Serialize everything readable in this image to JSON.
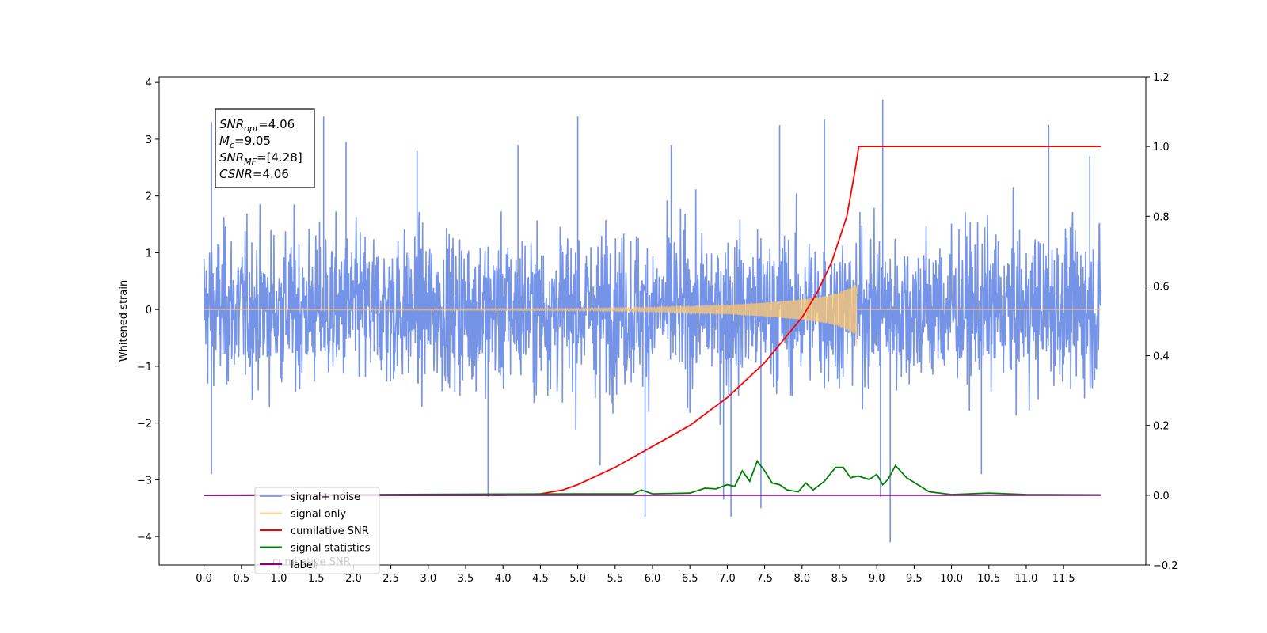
{
  "chart_data": {
    "type": "line",
    "ylabel_left": "Whitened strain",
    "xlim": [
      -0.6,
      12.6
    ],
    "ylim_left": [
      -4.5,
      4.1
    ],
    "ylim_right": [
      -0.2,
      1.2
    ],
    "x_ticks": [
      0.0,
      0.5,
      1.0,
      1.5,
      2.0,
      2.5,
      3.0,
      3.5,
      4.0,
      4.5,
      5.0,
      5.5,
      6.0,
      6.5,
      7.0,
      7.5,
      8.0,
      8.5,
      9.0,
      9.5,
      10.0,
      10.5,
      11.0,
      11.5
    ],
    "x_tick_labels": [
      "0.0",
      "0.5",
      "1.0",
      "1.5",
      "2.0",
      "2.5",
      "3.0",
      "3.5",
      "4.0",
      "4.5",
      "5.0",
      "5.5",
      "6.0",
      "6.5",
      "7.0",
      "7.5",
      "8.0",
      "8.5",
      "9.0",
      "9.5",
      "10.0",
      "10.5",
      "11.0",
      "11.5"
    ],
    "y_left_ticks": [
      -4,
      -3,
      -2,
      -1,
      0,
      1,
      2,
      3,
      4
    ],
    "y_left_tick_labels": [
      "−4",
      "−3",
      "−2",
      "−1",
      "0",
      "1",
      "2",
      "3",
      "4"
    ],
    "y_right_ticks": [
      -0.2,
      0.0,
      0.2,
      0.4,
      0.6,
      0.8,
      1.0,
      1.2
    ],
    "y_right_tick_labels": [
      "−0.2",
      "0.0",
      "0.2",
      "0.4",
      "0.6",
      "0.8",
      "1.0",
      "1.2"
    ],
    "annotation": {
      "lines": [
        {
          "sym": "SNR",
          "sub": "opt",
          "rest": "=4.06"
        },
        {
          "sym": "M",
          "sub": "c",
          "rest": "=9.05"
        },
        {
          "sym": "SNR",
          "sub": "MF",
          "rest": "=[4.28]"
        },
        {
          "sym": "CSNR",
          "sub": "",
          "rest": "=4.06"
        }
      ]
    },
    "legend": {
      "placement": "lower-left",
      "entries": [
        {
          "label": "signal+ noise",
          "color": "#6f8ee6"
        },
        {
          "label": "signal only",
          "color": "#ffc870"
        },
        {
          "label": "cumilative SNR",
          "color": "#ff0000"
        },
        {
          "label": "signal statistics",
          "color": "#008000"
        },
        {
          "label": "label",
          "color": "#800080"
        }
      ],
      "occluded_text": "cumilative SNR"
    },
    "series": [
      {
        "name": "signal+ noise",
        "axis": "left",
        "color": "#6f8ee6",
        "x_range": [
          0.0,
          12.0
        ],
        "band_typical": [
          -1.6,
          1.6
        ],
        "peaks": [
          {
            "x": 0.1,
            "y": 3.3
          },
          {
            "x": 1.6,
            "y": 3.4
          },
          {
            "x": 5.0,
            "y": 3.4
          },
          {
            "x": 7.7,
            "y": 3.25
          },
          {
            "x": 8.3,
            "y": 3.35
          },
          {
            "x": 9.08,
            "y": 3.7
          },
          {
            "x": 11.3,
            "y": 3.25
          },
          {
            "x": 11.85,
            "y": 2.7
          },
          {
            "x": 1.9,
            "y": 2.95
          },
          {
            "x": 2.85,
            "y": 2.8
          },
          {
            "x": 4.2,
            "y": 2.9
          },
          {
            "x": 6.25,
            "y": 2.9
          }
        ],
        "troughs": [
          {
            "x": 0.1,
            "y": -2.9
          },
          {
            "x": 3.8,
            "y": -3.3
          },
          {
            "x": 5.9,
            "y": -3.65
          },
          {
            "x": 7.05,
            "y": -3.65
          },
          {
            "x": 7.45,
            "y": -3.5
          },
          {
            "x": 9.18,
            "y": -4.1
          },
          {
            "x": 9.05,
            "y": -3.3
          },
          {
            "x": 6.95,
            "y": -3.35
          },
          {
            "x": 5.3,
            "y": -2.75
          },
          {
            "x": 10.4,
            "y": -2.9
          }
        ]
      },
      {
        "name": "signal only",
        "axis": "left",
        "color": "#ffc870",
        "x_range": [
          0.0,
          12.0
        ],
        "merger_time": 8.73,
        "amplitude_envelope": [
          [
            0.0,
            0.0
          ],
          [
            5.0,
            0.02
          ],
          [
            6.0,
            0.04
          ],
          [
            7.0,
            0.08
          ],
          [
            7.5,
            0.12
          ],
          [
            8.0,
            0.18
          ],
          [
            8.4,
            0.26
          ],
          [
            8.6,
            0.36
          ],
          [
            8.73,
            0.45
          ]
        ]
      },
      {
        "name": "cumilative SNR",
        "axis": "right",
        "color": "#ff0000",
        "x": [
          0.0,
          4.0,
          4.5,
          4.8,
          5.0,
          5.5,
          6.0,
          6.5,
          7.0,
          7.5,
          8.0,
          8.2,
          8.4,
          8.6,
          8.7,
          8.76,
          9.0,
          12.0
        ],
        "values": [
          0.0,
          0.0,
          0.004,
          0.015,
          0.03,
          0.08,
          0.14,
          0.2,
          0.28,
          0.38,
          0.51,
          0.58,
          0.67,
          0.8,
          0.92,
          1.0,
          1.0,
          1.0
        ]
      },
      {
        "name": "signal statistics",
        "axis": "right",
        "color": "#008000",
        "x": [
          0.0,
          5.0,
          5.75,
          5.85,
          6.0,
          6.5,
          6.7,
          6.85,
          7.0,
          7.1,
          7.2,
          7.3,
          7.4,
          7.5,
          7.6,
          7.7,
          7.8,
          7.95,
          8.05,
          8.15,
          8.3,
          8.45,
          8.55,
          8.65,
          8.75,
          8.9,
          9.0,
          9.08,
          9.15,
          9.25,
          9.4,
          9.55,
          9.7,
          10.0,
          10.5,
          11.0,
          12.0
        ],
        "values": [
          0.0,
          0.004,
          0.004,
          0.015,
          0.004,
          0.006,
          0.02,
          0.018,
          0.03,
          0.025,
          0.07,
          0.04,
          0.098,
          0.07,
          0.035,
          0.03,
          0.015,
          0.01,
          0.035,
          0.015,
          0.04,
          0.08,
          0.08,
          0.05,
          0.055,
          0.045,
          0.06,
          0.03,
          0.045,
          0.085,
          0.05,
          0.03,
          0.01,
          0.002,
          0.006,
          0.002,
          0.001
        ]
      },
      {
        "name": "label",
        "axis": "right",
        "color": "#800080",
        "x": [
          0.0,
          12.0
        ],
        "values": [
          0.0,
          0.0
        ]
      }
    ]
  }
}
